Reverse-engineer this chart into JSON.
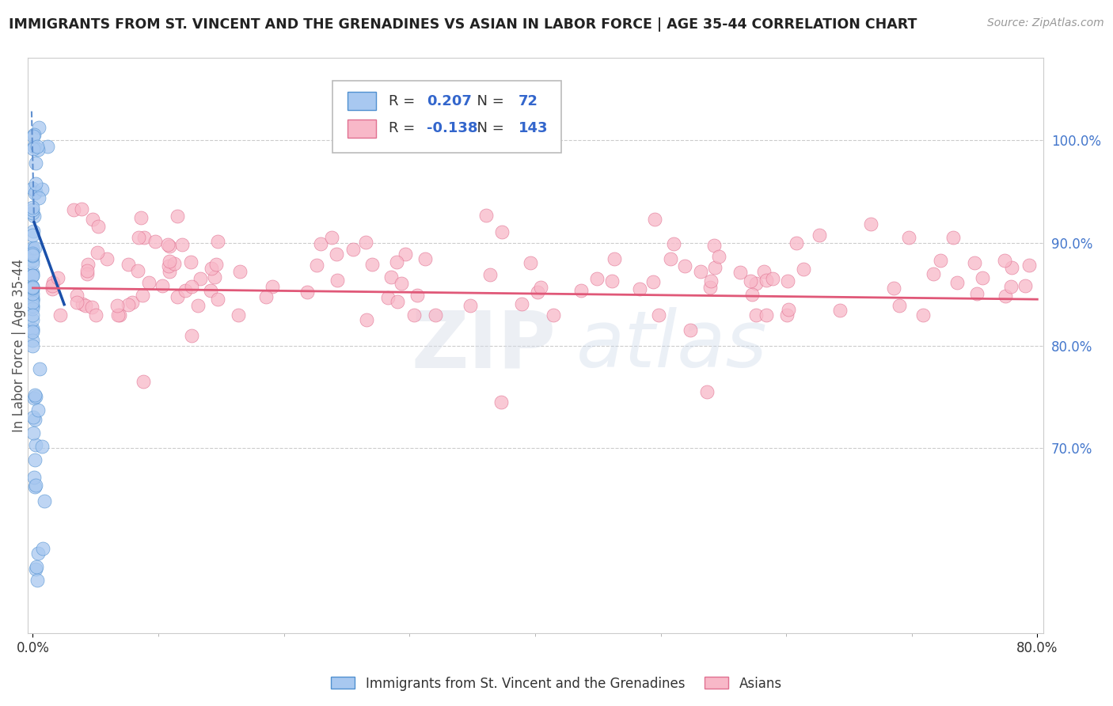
{
  "title": "IMMIGRANTS FROM ST. VINCENT AND THE GRENADINES VS ASIAN IN LABOR FORCE | AGE 35-44 CORRELATION CHART",
  "source": "Source: ZipAtlas.com",
  "xlabel_left": "Immigrants from St. Vincent and the Grenadines",
  "xlabel_right": "Asians",
  "ylabel": "In Labor Force | Age 35-44",
  "watermark_zip": "ZIP",
  "watermark_atlas": "atlas",
  "legend_blue_R": "0.207",
  "legend_blue_N": "72",
  "legend_pink_R": "-0.138",
  "legend_pink_N": "143",
  "blue_fill": "#a8c8f0",
  "blue_edge": "#5090d0",
  "blue_line": "#1a50aa",
  "blue_dash": "#6090d0",
  "pink_fill": "#f8b8c8",
  "pink_edge": "#e07090",
  "pink_line": "#e05878",
  "right_yticks": [
    0.7,
    0.8,
    0.9,
    1.0
  ],
  "right_yticklabels": [
    "70.0%",
    "80.0%",
    "90.0%",
    "100.0%"
  ],
  "xlim": [
    -0.004,
    0.805
  ],
  "ylim": [
    0.52,
    1.08
  ],
  "grid_yticks": [
    0.7,
    0.8,
    0.9,
    1.0
  ]
}
